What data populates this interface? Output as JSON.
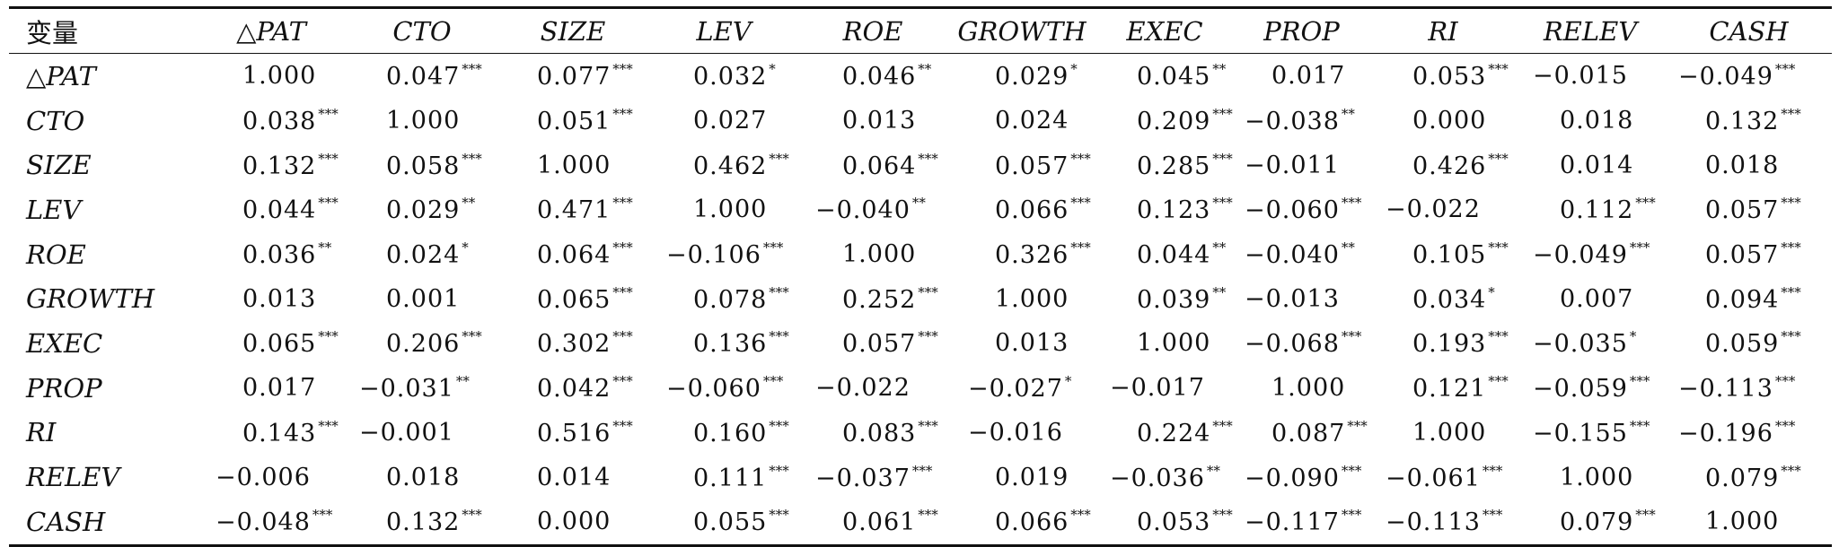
{
  "table": {
    "header": [
      "变量",
      "△PAT",
      "CTO",
      "SIZE",
      "LEV",
      "ROE",
      "GROWTH",
      "EXEC",
      "PROP",
      "RI",
      "RELEV",
      "CASH"
    ],
    "rows": [
      {
        "label": "△PAT",
        "cells": [
          [
            "1.000",
            ""
          ],
          [
            "0.047",
            "***"
          ],
          [
            "0.077",
            "***"
          ],
          [
            "0.032",
            "*"
          ],
          [
            "0.046",
            "**"
          ],
          [
            "0.029",
            "*"
          ],
          [
            "0.045",
            "**"
          ],
          [
            "0.017",
            ""
          ],
          [
            "0.053",
            "***"
          ],
          [
            "−0.015",
            ""
          ],
          [
            "−0.049",
            "***"
          ]
        ]
      },
      {
        "label": "CTO",
        "cells": [
          [
            "0.038",
            "***"
          ],
          [
            "1.000",
            ""
          ],
          [
            "0.051",
            "***"
          ],
          [
            "0.027",
            ""
          ],
          [
            "0.013",
            ""
          ],
          [
            "0.024",
            ""
          ],
          [
            "0.209",
            "***"
          ],
          [
            "−0.038",
            "**"
          ],
          [
            "0.000",
            ""
          ],
          [
            "0.018",
            ""
          ],
          [
            "0.132",
            "***"
          ]
        ]
      },
      {
        "label": "SIZE",
        "cells": [
          [
            "0.132",
            "***"
          ],
          [
            "0.058",
            "***"
          ],
          [
            "1.000",
            ""
          ],
          [
            "0.462",
            "***"
          ],
          [
            "0.064",
            "***"
          ],
          [
            "0.057",
            "***"
          ],
          [
            "0.285",
            "***"
          ],
          [
            "−0.011",
            ""
          ],
          [
            "0.426",
            "***"
          ],
          [
            "0.014",
            ""
          ],
          [
            "0.018",
            ""
          ]
        ]
      },
      {
        "label": "LEV",
        "cells": [
          [
            "0.044",
            "***"
          ],
          [
            "0.029",
            "**"
          ],
          [
            "0.471",
            "***"
          ],
          [
            "1.000",
            ""
          ],
          [
            "−0.040",
            "**"
          ],
          [
            "0.066",
            "***"
          ],
          [
            "0.123",
            "***"
          ],
          [
            "−0.060",
            "***"
          ],
          [
            "−0.022",
            ""
          ],
          [
            "0.112",
            "***"
          ],
          [
            "0.057",
            "***"
          ]
        ]
      },
      {
        "label": "ROE",
        "cells": [
          [
            "0.036",
            "**"
          ],
          [
            "0.024",
            "*"
          ],
          [
            "0.064",
            "***"
          ],
          [
            "−0.106",
            "***"
          ],
          [
            "1.000",
            ""
          ],
          [
            "0.326",
            "***"
          ],
          [
            "0.044",
            "**"
          ],
          [
            "−0.040",
            "**"
          ],
          [
            "0.105",
            "***"
          ],
          [
            "−0.049",
            "***"
          ],
          [
            "0.057",
            "***"
          ]
        ]
      },
      {
        "label": "GROWTH",
        "cells": [
          [
            "0.013",
            ""
          ],
          [
            "0.001",
            ""
          ],
          [
            "0.065",
            "***"
          ],
          [
            "0.078",
            "***"
          ],
          [
            "0.252",
            "***"
          ],
          [
            "1.000",
            ""
          ],
          [
            "0.039",
            "**"
          ],
          [
            "−0.013",
            ""
          ],
          [
            "0.034",
            "*"
          ],
          [
            "0.007",
            ""
          ],
          [
            "0.094",
            "***"
          ]
        ]
      },
      {
        "label": "EXEC",
        "cells": [
          [
            "0.065",
            "***"
          ],
          [
            "0.206",
            "***"
          ],
          [
            "0.302",
            "***"
          ],
          [
            "0.136",
            "***"
          ],
          [
            "0.057",
            "***"
          ],
          [
            "0.013",
            ""
          ],
          [
            "1.000",
            ""
          ],
          [
            "−0.068",
            "***"
          ],
          [
            "0.193",
            "***"
          ],
          [
            "−0.035",
            "*"
          ],
          [
            "0.059",
            "***"
          ]
        ]
      },
      {
        "label": "PROP",
        "cells": [
          [
            "0.017",
            ""
          ],
          [
            "−0.031",
            "**"
          ],
          [
            "0.042",
            "***"
          ],
          [
            "−0.060",
            "***"
          ],
          [
            "−0.022",
            ""
          ],
          [
            "−0.027",
            "*"
          ],
          [
            "−0.017",
            ""
          ],
          [
            "1.000",
            ""
          ],
          [
            "0.121",
            "***"
          ],
          [
            "−0.059",
            "***"
          ],
          [
            "−0.113",
            "***"
          ]
        ]
      },
      {
        "label": "RI",
        "cells": [
          [
            "0.143",
            "***"
          ],
          [
            "−0.001",
            ""
          ],
          [
            "0.516",
            "***"
          ],
          [
            "0.160",
            "***"
          ],
          [
            "0.083",
            "***"
          ],
          [
            "−0.016",
            ""
          ],
          [
            "0.224",
            "***"
          ],
          [
            "0.087",
            "***"
          ],
          [
            "1.000",
            ""
          ],
          [
            "−0.155",
            "***"
          ],
          [
            "−0.196",
            "***"
          ]
        ]
      },
      {
        "label": "RELEV",
        "cells": [
          [
            "−0.006",
            ""
          ],
          [
            "0.018",
            ""
          ],
          [
            "0.014",
            ""
          ],
          [
            "0.111",
            "***"
          ],
          [
            "−0.037",
            "***"
          ],
          [
            "0.019",
            ""
          ],
          [
            "−0.036",
            "**"
          ],
          [
            "−0.090",
            "***"
          ],
          [
            "−0.061",
            "***"
          ],
          [
            "1.000",
            ""
          ],
          [
            "0.079",
            "***"
          ]
        ]
      },
      {
        "label": "CASH",
        "cells": [
          [
            "−0.048",
            "***"
          ],
          [
            "0.132",
            "***"
          ],
          [
            "0.000",
            ""
          ],
          [
            "0.055",
            "***"
          ],
          [
            "0.061",
            "***"
          ],
          [
            "0.066",
            "***"
          ],
          [
            "0.053",
            "***"
          ],
          [
            "−0.117",
            "***"
          ],
          [
            "−0.113",
            "***"
          ],
          [
            "0.079",
            "***"
          ],
          [
            "1.000",
            ""
          ]
        ]
      }
    ]
  }
}
